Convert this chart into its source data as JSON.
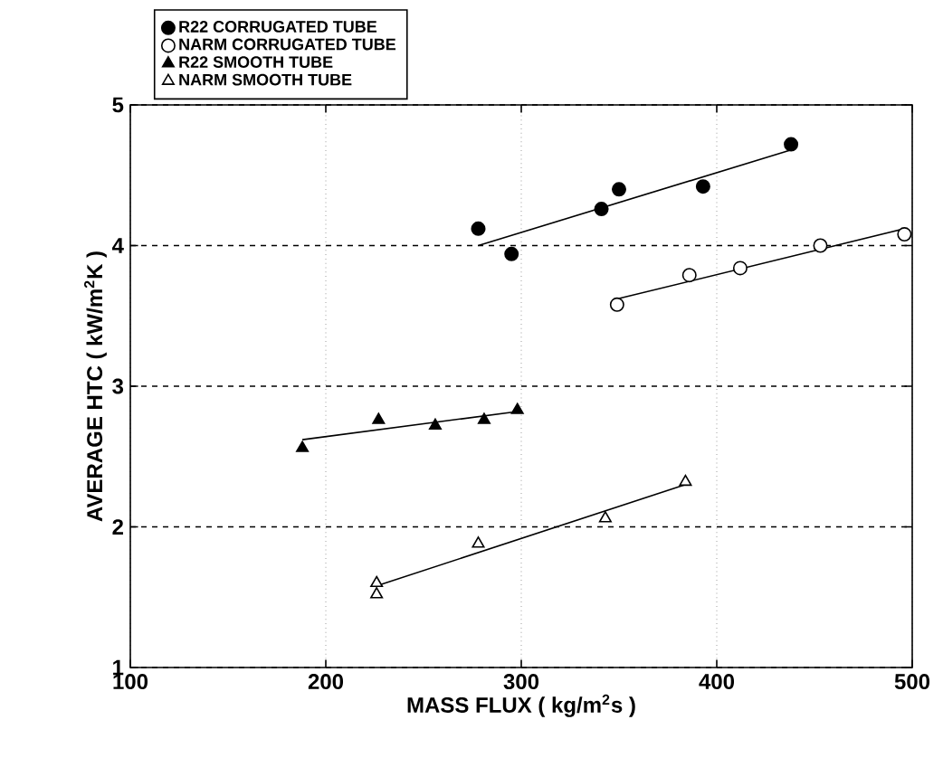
{
  "chart_data": {
    "type": "scatter",
    "xlabel": "MASS FLUX ( kg/m$^{2}$s )",
    "ylabel": "AVERAGE HTC ( kW/m$^{2}$K )",
    "xlim": [
      100,
      500
    ],
    "ylim": [
      1,
      5
    ],
    "xticks": [
      100,
      200,
      300,
      400,
      500
    ],
    "yticks": [
      1,
      2,
      3,
      4,
      5
    ],
    "grid": true,
    "legend": "top left",
    "series": [
      {
        "name": "R22 CORRUGATED TUBE",
        "color": "#000000",
        "marker": "circle",
        "x": [
          278,
          295,
          341,
          350,
          393,
          438
        ],
        "values": [
          4.12,
          3.94,
          4.26,
          4.4,
          4.42,
          4.72
        ]
      },
      {
        "name": "NARM CORRUGATED TUBE",
        "color": "#000000",
        "marker": "circle",
        "x": [
          349,
          386,
          412,
          453,
          496
        ],
        "values": [
          3.58,
          3.79,
          3.84,
          4.0,
          4.08
        ]
      },
      {
        "name": "R22 SMOOTH TUBE",
        "color": "#000000",
        "marker": "triangle",
        "x": [
          188,
          227,
          256,
          281,
          298
        ],
        "values": [
          2.56,
          2.76,
          2.72,
          2.76,
          2.83
        ]
      },
      {
        "name": "NARM SMOOTH TUBE",
        "color": "#000000",
        "marker": "triangle",
        "x": [
          226,
          226,
          278,
          343,
          384
        ],
        "values": [
          1.6,
          1.52,
          1.88,
          2.06,
          2.32
        ]
      },
      {
        "type": "line",
        "color": "#000000",
        "x": [
          278,
          438
        ],
        "values": [
          4.0,
          4.68
        ]
      },
      {
        "type": "line",
        "color": "#000000",
        "x": [
          349,
          496
        ],
        "values": [
          3.62,
          4.12
        ]
      },
      {
        "type": "line",
        "color": "#000000",
        "x": [
          188,
          298
        ],
        "values": [
          2.62,
          2.82
        ]
      },
      {
        "type": "line",
        "color": "#000000",
        "x": [
          226,
          384
        ],
        "values": [
          1.58,
          2.3
        ]
      }
    ]
  }
}
